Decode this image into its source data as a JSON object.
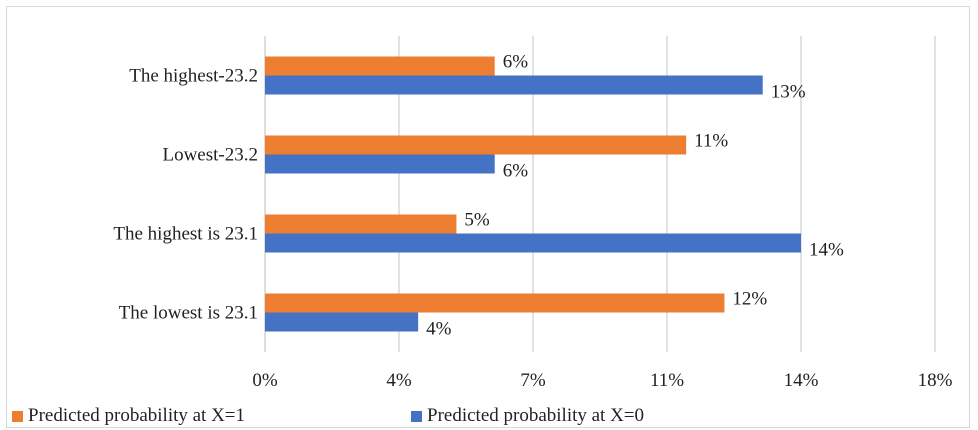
{
  "chart_data": {
    "type": "bar",
    "orientation": "horizontal",
    "categories": [
      "The highest-23.2",
      "Lowest-23.2",
      "The highest is 23.1",
      "The lowest is 23.1"
    ],
    "series": [
      {
        "name": "Predicted probability at X=1",
        "color": "#ED7D31",
        "values": [
          6,
          11,
          5,
          12
        ],
        "labels": [
          "6%",
          "11%",
          "5%",
          "12%"
        ]
      },
      {
        "name": "Predicted probability at X=0",
        "color": "#4472C4",
        "values": [
          13,
          6,
          14,
          4
        ],
        "labels": [
          "13%",
          "6%",
          "14%",
          "4%"
        ]
      }
    ],
    "x_ticks": [
      "0%",
      "4%",
      "7%",
      "11%",
      "14%",
      "18%"
    ],
    "xlim": [
      0,
      17.5
    ],
    "grid": true,
    "legend_position": "bottom-left"
  }
}
